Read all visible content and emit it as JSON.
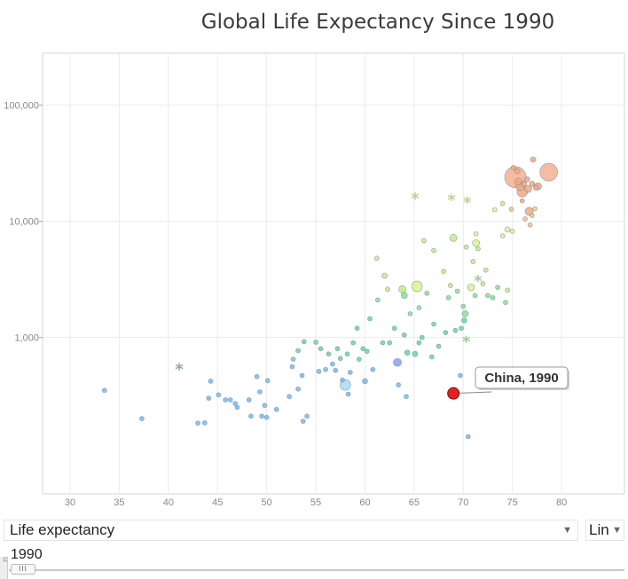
{
  "chart_data": {
    "type": "scatter",
    "title": "Global Life Expectancy Since 1990",
    "x_ticks": [
      "30",
      "35",
      "40",
      "45",
      "50",
      "55",
      "60",
      "65",
      "70",
      "75",
      "80"
    ],
    "x_tick_values": [
      30,
      35,
      40,
      45,
      50,
      55,
      60,
      65,
      70,
      75,
      80
    ],
    "y_ticks": [
      "1,000",
      "10,000",
      "100,000"
    ],
    "y_tick_values": [
      1000,
      10000,
      100000
    ],
    "xlim": [
      27.2,
      86.4
    ],
    "ylim": [
      45,
      280000
    ],
    "y_scale": "log",
    "grid": true,
    "highlight": {
      "label": "China, 1990",
      "x": 69,
      "y": 330,
      "color": "#e62020"
    },
    "stars": [
      {
        "x": 41.1,
        "y": 540,
        "color": "#8aa2c4"
      },
      {
        "x": 65.1,
        "y": 16000,
        "color": "#c8cc90"
      },
      {
        "x": 68.8,
        "y": 15500,
        "color": "#c8cc90"
      },
      {
        "x": 70.4,
        "y": 14800,
        "color": "#c8cc90"
      },
      {
        "x": 71.5,
        "y": 3100,
        "color": "#a8c8a0"
      },
      {
        "x": 70.3,
        "y": 930,
        "color": "#a8c8a0"
      }
    ],
    "points": [
      {
        "x": 33.5,
        "y": 350,
        "r": 2.5,
        "c": "#7ab8e8"
      },
      {
        "x": 37.3,
        "y": 200,
        "r": 2.5,
        "c": "#7ab8e8"
      },
      {
        "x": 43.0,
        "y": 183,
        "r": 2.5,
        "c": "#7ab8e8"
      },
      {
        "x": 43.7,
        "y": 184,
        "r": 2.5,
        "c": "#7ab8e8"
      },
      {
        "x": 44.3,
        "y": 420,
        "r": 2.5,
        "c": "#7ab8e8"
      },
      {
        "x": 44.1,
        "y": 300,
        "r": 2.5,
        "c": "#7ab8e8"
      },
      {
        "x": 45.1,
        "y": 320,
        "r": 2.5,
        "c": "#7ab8e8"
      },
      {
        "x": 45.8,
        "y": 290,
        "r": 2.5,
        "c": "#7ab8e8"
      },
      {
        "x": 46.3,
        "y": 290,
        "r": 2.5,
        "c": "#7ab8e8"
      },
      {
        "x": 46.8,
        "y": 270,
        "r": 2.5,
        "c": "#7ab8e8"
      },
      {
        "x": 47.0,
        "y": 250,
        "r": 2.5,
        "c": "#7ab8e8"
      },
      {
        "x": 48.2,
        "y": 290,
        "r": 2.5,
        "c": "#7ab8e8"
      },
      {
        "x": 48.4,
        "y": 210,
        "r": 2.5,
        "c": "#7ab8e8"
      },
      {
        "x": 49.0,
        "y": 460,
        "r": 2.5,
        "c": "#7ab8e8"
      },
      {
        "x": 49.3,
        "y": 340,
        "r": 2.5,
        "c": "#7ab8e8"
      },
      {
        "x": 49.5,
        "y": 210,
        "r": 2.5,
        "c": "#7ab8e8"
      },
      {
        "x": 49.8,
        "y": 260,
        "r": 2.5,
        "c": "#7ab8e8"
      },
      {
        "x": 50.1,
        "y": 425,
        "r": 2.5,
        "c": "#7ab8e8"
      },
      {
        "x": 50.0,
        "y": 205,
        "r": 2.5,
        "c": "#7ab8e8"
      },
      {
        "x": 51.0,
        "y": 240,
        "r": 2.5,
        "c": "#7ab8e8"
      },
      {
        "x": 52.3,
        "y": 310,
        "r": 2.5,
        "c": "#7ab8e8"
      },
      {
        "x": 52.6,
        "y": 560,
        "r": 2.5,
        "c": "#7ab8e8"
      },
      {
        "x": 53.2,
        "y": 360,
        "r": 2.5,
        "c": "#7ab8e8"
      },
      {
        "x": 53.6,
        "y": 470,
        "r": 2.5,
        "c": "#7ab8e8"
      },
      {
        "x": 54.1,
        "y": 210,
        "r": 2.5,
        "c": "#7ab8e8"
      },
      {
        "x": 53.7,
        "y": 190,
        "r": 2.5,
        "c": "#7ab8e8"
      },
      {
        "x": 52.7,
        "y": 650,
        "r": 2.5,
        "c": "#6ad6a0"
      },
      {
        "x": 53.2,
        "y": 770,
        "r": 2.5,
        "c": "#6ad6a0"
      },
      {
        "x": 53.8,
        "y": 920,
        "r": 2.5,
        "c": "#6ad6a0"
      },
      {
        "x": 55.0,
        "y": 910,
        "r": 2.5,
        "c": "#6ad6a0"
      },
      {
        "x": 55.3,
        "y": 510,
        "r": 2.5,
        "c": "#7ab8e8"
      },
      {
        "x": 55.5,
        "y": 800,
        "r": 2.5,
        "c": "#6ad6a0"
      },
      {
        "x": 56.0,
        "y": 530,
        "r": 2.5,
        "c": "#7ab8e8"
      },
      {
        "x": 56.3,
        "y": 720,
        "r": 2.5,
        "c": "#6ad6a0"
      },
      {
        "x": 56.7,
        "y": 590,
        "r": 2.5,
        "c": "#7ab8e8"
      },
      {
        "x": 57.0,
        "y": 520,
        "r": 2.5,
        "c": "#7ab8e8"
      },
      {
        "x": 57.2,
        "y": 800,
        "r": 2.5,
        "c": "#6ad6a0"
      },
      {
        "x": 57.5,
        "y": 660,
        "r": 2.5,
        "c": "#6ad6a0"
      },
      {
        "x": 57.7,
        "y": 430,
        "r": 2.5,
        "c": "#7ab8e8"
      },
      {
        "x": 58.0,
        "y": 390,
        "r": 6,
        "c": "#a8dcf4"
      },
      {
        "x": 58.2,
        "y": 720,
        "r": 2.5,
        "c": "#6ad6a0"
      },
      {
        "x": 58.3,
        "y": 325,
        "r": 2.5,
        "c": "#7ab8e8"
      },
      {
        "x": 58.5,
        "y": 500,
        "r": 2.5,
        "c": "#7ab8e8"
      },
      {
        "x": 58.8,
        "y": 900,
        "r": 2.5,
        "c": "#6ad6a0"
      },
      {
        "x": 59.2,
        "y": 1200,
        "r": 2.5,
        "c": "#6ad6a0"
      },
      {
        "x": 59.4,
        "y": 650,
        "r": 2.5,
        "c": "#6ad6a0"
      },
      {
        "x": 59.8,
        "y": 800,
        "r": 2.5,
        "c": "#6ad6a0"
      },
      {
        "x": 60.0,
        "y": 420,
        "r": 3,
        "c": "#7ab8e8"
      },
      {
        "x": 60.2,
        "y": 760,
        "r": 2.5,
        "c": "#6ad6a0"
      },
      {
        "x": 60.5,
        "y": 1450,
        "r": 2.5,
        "c": "#6ad6a0"
      },
      {
        "x": 60.8,
        "y": 530,
        "r": 2.5,
        "c": "#7ab8e8"
      },
      {
        "x": 61.2,
        "y": 4800,
        "r": 2.5,
        "c": "#c8ec80"
      },
      {
        "x": 61.3,
        "y": 2100,
        "r": 2.5,
        "c": "#8ce08c"
      },
      {
        "x": 61.8,
        "y": 900,
        "r": 2.5,
        "c": "#6ad6a0"
      },
      {
        "x": 62.0,
        "y": 3400,
        "r": 3,
        "c": "#c8ec80"
      },
      {
        "x": 62.3,
        "y": 2600,
        "r": 2.5,
        "c": "#c8ec80"
      },
      {
        "x": 62.5,
        "y": 900,
        "r": 2.5,
        "c": "#6ad6a0"
      },
      {
        "x": 63.0,
        "y": 1200,
        "r": 2.5,
        "c": "#6ad6a0"
      },
      {
        "x": 63.3,
        "y": 610,
        "r": 4.5,
        "c": "#8ca0f0"
      },
      {
        "x": 63.4,
        "y": 390,
        "r": 2.5,
        "c": "#7ab8e8"
      },
      {
        "x": 63.8,
        "y": 2600,
        "r": 4,
        "c": "#c8ec80"
      },
      {
        "x": 64.0,
        "y": 2300,
        "r": 3.5,
        "c": "#8ce08c"
      },
      {
        "x": 64.0,
        "y": 1050,
        "r": 2.5,
        "c": "#6ad6a0"
      },
      {
        "x": 64.2,
        "y": 310,
        "r": 2.5,
        "c": "#7ab8e8"
      },
      {
        "x": 64.3,
        "y": 740,
        "r": 3,
        "c": "#6ad6a0"
      },
      {
        "x": 64.6,
        "y": 1600,
        "r": 2.5,
        "c": "#8ce08c"
      },
      {
        "x": 65.1,
        "y": 720,
        "r": 3,
        "c": "#6ad6a0"
      },
      {
        "x": 65.3,
        "y": 2750,
        "r": 6,
        "c": "#d8f490"
      },
      {
        "x": 65.5,
        "y": 1800,
        "r": 2.5,
        "c": "#8ce08c"
      },
      {
        "x": 65.5,
        "y": 900,
        "r": 2.5,
        "c": "#6ad6a0"
      },
      {
        "x": 65.8,
        "y": 1000,
        "r": 2.5,
        "c": "#6ad6a0"
      },
      {
        "x": 66.0,
        "y": 6800,
        "r": 2.5,
        "c": "#c8ec80"
      },
      {
        "x": 66.3,
        "y": 2400,
        "r": 2.5,
        "c": "#8ce08c"
      },
      {
        "x": 66.8,
        "y": 680,
        "r": 2.5,
        "c": "#6ad6a0"
      },
      {
        "x": 67.0,
        "y": 1300,
        "r": 2.5,
        "c": "#6ad6a0"
      },
      {
        "x": 67.0,
        "y": 5600,
        "r": 2.5,
        "c": "#c8ec80"
      },
      {
        "x": 67.5,
        "y": 840,
        "r": 2.5,
        "c": "#6ad6a0"
      },
      {
        "x": 68.0,
        "y": 3700,
        "r": 2.5,
        "c": "#c8ec80"
      },
      {
        "x": 68.2,
        "y": 1100,
        "r": 2.5,
        "c": "#6ad6a0"
      },
      {
        "x": 68.5,
        "y": 2200,
        "r": 2.5,
        "c": "#8ce08c"
      },
      {
        "x": 68.7,
        "y": 2800,
        "r": 2.5,
        "c": "#c8ec80"
      },
      {
        "x": 69.0,
        "y": 7200,
        "r": 4,
        "c": "#c8ec80"
      },
      {
        "x": 69.2,
        "y": 1150,
        "r": 2.5,
        "c": "#6ad6a0"
      },
      {
        "x": 69.4,
        "y": 2500,
        "r": 2.5,
        "c": "#8ce08c"
      },
      {
        "x": 69.7,
        "y": 470,
        "r": 2.5,
        "c": "#7ab8e8"
      },
      {
        "x": 69.8,
        "y": 1200,
        "r": 2.5,
        "c": "#6ad6a0"
      },
      {
        "x": 70.0,
        "y": 1850,
        "r": 2.5,
        "c": "#8ce08c"
      },
      {
        "x": 70.1,
        "y": 1400,
        "r": 3,
        "c": "#6ad6a0"
      },
      {
        "x": 70.2,
        "y": 1600,
        "r": 3.5,
        "c": "#8ce08c"
      },
      {
        "x": 70.3,
        "y": 6000,
        "r": 2.5,
        "c": "#c8ec80"
      },
      {
        "x": 70.5,
        "y": 140,
        "r": 2.5,
        "c": "#7ab8e8"
      },
      {
        "x": 70.8,
        "y": 2700,
        "r": 4,
        "c": "#d8f490"
      },
      {
        "x": 71.0,
        "y": 4500,
        "r": 2.5,
        "c": "#c8ec80"
      },
      {
        "x": 71.2,
        "y": 2300,
        "r": 2.5,
        "c": "#8ce08c"
      },
      {
        "x": 71.3,
        "y": 6500,
        "r": 4,
        "c": "#d8f490"
      },
      {
        "x": 71.3,
        "y": 7800,
        "r": 2.5,
        "c": "#d8f490"
      },
      {
        "x": 71.5,
        "y": 5800,
        "r": 2.5,
        "c": "#c8ec80"
      },
      {
        "x": 72.0,
        "y": 2900,
        "r": 2.5,
        "c": "#c8ec80"
      },
      {
        "x": 72.3,
        "y": 3800,
        "r": 2.5,
        "c": "#c8ec80"
      },
      {
        "x": 72.5,
        "y": 2300,
        "r": 2.5,
        "c": "#8ce08c"
      },
      {
        "x": 73.0,
        "y": 2200,
        "r": 2.5,
        "c": "#8ce08c"
      },
      {
        "x": 73.2,
        "y": 12600,
        "r": 2.5,
        "c": "#d8f490"
      },
      {
        "x": 73.5,
        "y": 2700,
        "r": 2.5,
        "c": "#8ce08c"
      },
      {
        "x": 74.0,
        "y": 7500,
        "r": 2.5,
        "c": "#f0e890"
      },
      {
        "x": 74.0,
        "y": 14200,
        "r": 2.5,
        "c": "#f0d890"
      },
      {
        "x": 74.3,
        "y": 2000,
        "r": 2.5,
        "c": "#8ce08c"
      },
      {
        "x": 74.5,
        "y": 8500,
        "r": 3,
        "c": "#f0e890"
      },
      {
        "x": 74.5,
        "y": 2550,
        "r": 2.5,
        "c": "#c8ec80"
      },
      {
        "x": 74.9,
        "y": 12700,
        "r": 2.5,
        "c": "#f0c090"
      },
      {
        "x": 75.0,
        "y": 8200,
        "r": 2.5,
        "c": "#e8f090"
      },
      {
        "x": 75.1,
        "y": 29000,
        "r": 2.5,
        "c": "#f4a880"
      },
      {
        "x": 75.3,
        "y": 24000,
        "r": 12,
        "c": "#f4b090"
      },
      {
        "x": 75.5,
        "y": 27000,
        "r": 3,
        "c": "#f4a880"
      },
      {
        "x": 75.6,
        "y": 22000,
        "r": 4,
        "c": "#f4a880"
      },
      {
        "x": 75.8,
        "y": 20000,
        "r": 5,
        "c": "#f4a880"
      },
      {
        "x": 76.0,
        "y": 15000,
        "r": 2.5,
        "c": "#f4a880"
      },
      {
        "x": 76.0,
        "y": 18000,
        "r": 6,
        "c": "#f4a880"
      },
      {
        "x": 76.2,
        "y": 21000,
        "r": 3,
        "c": "#f4a880"
      },
      {
        "x": 76.3,
        "y": 10500,
        "r": 2.5,
        "c": "#f0c090"
      },
      {
        "x": 76.5,
        "y": 23000,
        "r": 3,
        "c": "#f4a880"
      },
      {
        "x": 76.6,
        "y": 19000,
        "r": 4,
        "c": "#f4a880"
      },
      {
        "x": 76.7,
        "y": 12200,
        "r": 4.5,
        "c": "#f4a880"
      },
      {
        "x": 76.8,
        "y": 9300,
        "r": 2.5,
        "c": "#f0c090"
      },
      {
        "x": 77.0,
        "y": 11200,
        "r": 2.5,
        "c": "#f0c090"
      },
      {
        "x": 77.0,
        "y": 21000,
        "r": 3,
        "c": "#f4a880"
      },
      {
        "x": 77.1,
        "y": 34000,
        "r": 3,
        "c": "#f4a880"
      },
      {
        "x": 77.3,
        "y": 12800,
        "r": 2.5,
        "c": "#f4d080"
      },
      {
        "x": 77.4,
        "y": 19500,
        "r": 3,
        "c": "#f4a880"
      },
      {
        "x": 77.6,
        "y": 20000,
        "r": 4,
        "c": "#f4a880"
      },
      {
        "x": 78.7,
        "y": 26500,
        "r": 10,
        "c": "#f4b090"
      }
    ]
  },
  "controls": {
    "x_measure": "Life expectancy",
    "x_measure_arrow": "▼",
    "scale": "Lin",
    "scale_arrow": "▼",
    "year": "1990",
    "slider_handle_glyph": "III",
    "side_tab_glyph": "M"
  }
}
